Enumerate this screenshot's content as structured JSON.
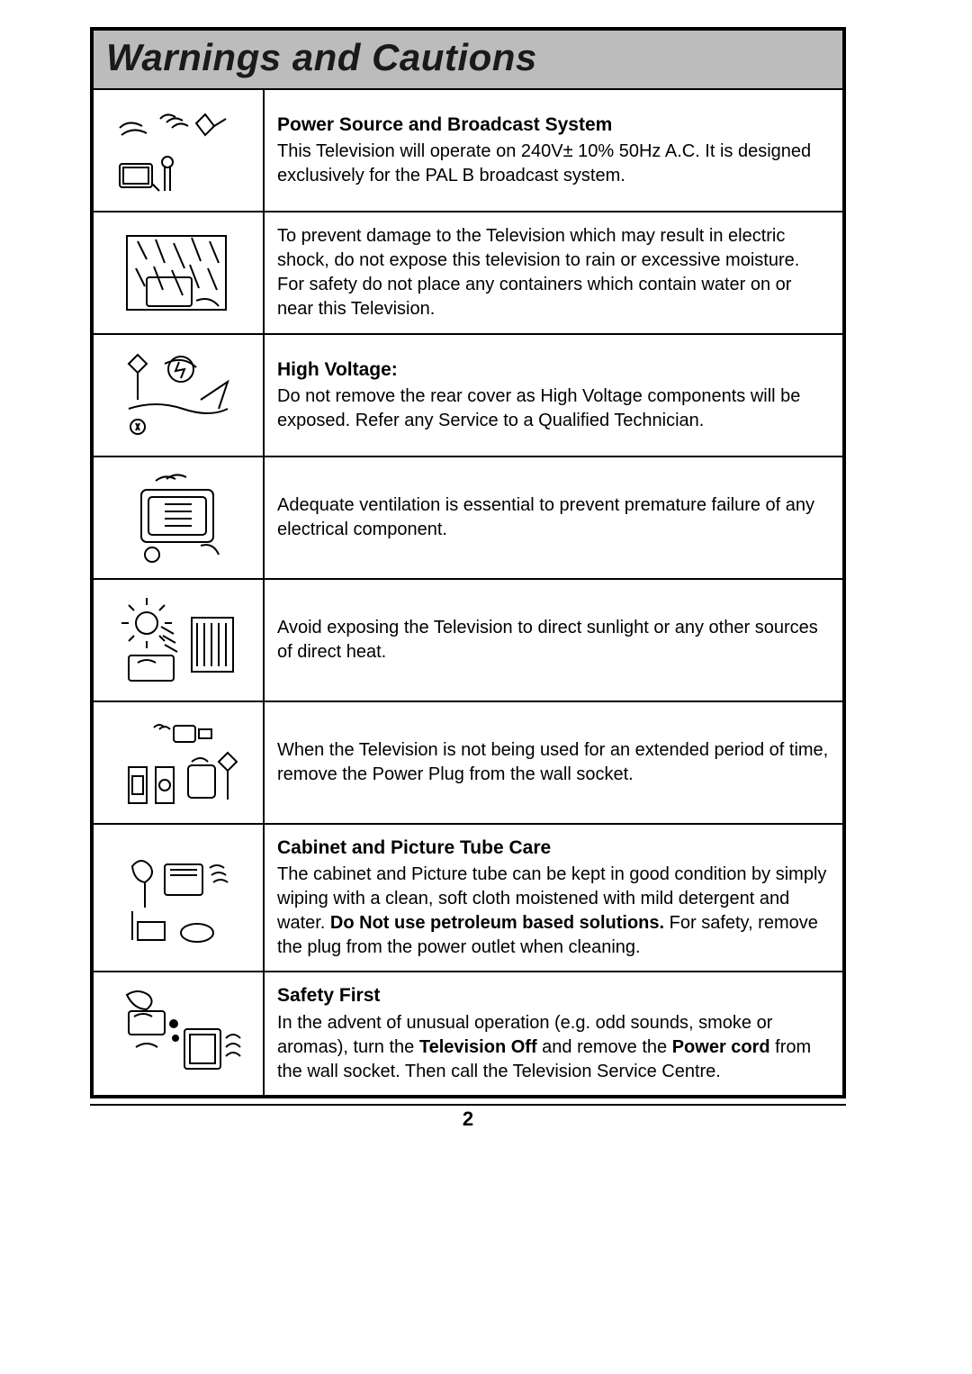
{
  "title": "Warnings and Cautions",
  "page_number": "2",
  "colors": {
    "page_bg": "#ffffff",
    "title_bg": "#bcbcbc",
    "border": "#000000",
    "text": "#000000"
  },
  "typography": {
    "title_fontsize": 42,
    "body_fontsize": 20,
    "heading_fontsize": 21,
    "font_family": "Arial"
  },
  "layout": {
    "outer_width": 840,
    "icon_col_width": 190,
    "row_min_height": 134,
    "border_width": 2,
    "outer_border_width": 4
  },
  "rows": [
    {
      "icon": "power-plug-icon",
      "heading": "Power Source and Broadcast System",
      "body": "This Television will operate on 240V± 10% 50Hz A.C.\nIt is designed exclusively for the PAL B broadcast system."
    },
    {
      "icon": "rain-window-icon",
      "heading": "",
      "body": "To prevent damage to the Television which may result in electric shock, do not expose this television to rain or excessive moisture. For safety do not place any containers which contain water on or near this Television."
    },
    {
      "icon": "high-voltage-icon",
      "heading": "High Voltage:",
      "body": "Do not remove the rear cover as High Voltage components will be exposed.\nRefer any Service to a Qualified Technician."
    },
    {
      "icon": "ventilation-icon",
      "heading": "",
      "body": "Adequate ventilation is essential to prevent premature failure of any electrical component."
    },
    {
      "icon": "sunlight-heat-icon",
      "heading": "",
      "body": "Avoid exposing the Television to direct sunlight or any other sources of direct heat."
    },
    {
      "icon": "unplug-travel-icon",
      "heading": "",
      "body": "When the Television is not being used for an extended period of time, remove the Power Plug from the wall socket."
    },
    {
      "icon": "cleaning-icon",
      "heading": "Cabinet and Picture Tube Care",
      "body": "The cabinet and Picture tube can be kept in good condition by simply wiping with a clean, soft cloth moistened with mild detergent and water. <b>Do Not use petroleum based solutions.</b> For safety, remove the plug from the power outlet when cleaning."
    },
    {
      "icon": "safety-smoke-icon",
      "heading": "Safety First",
      "body": "In the advent of unusual operation (e.g. odd sounds, smoke or aromas), turn the <b>Television Off</b> and remove the <b>Power cord</b> from the wall socket. Then call the Television Service Centre."
    }
  ],
  "svg_style": {
    "stroke": "#000000",
    "stroke_width": 2,
    "fill": "none"
  }
}
